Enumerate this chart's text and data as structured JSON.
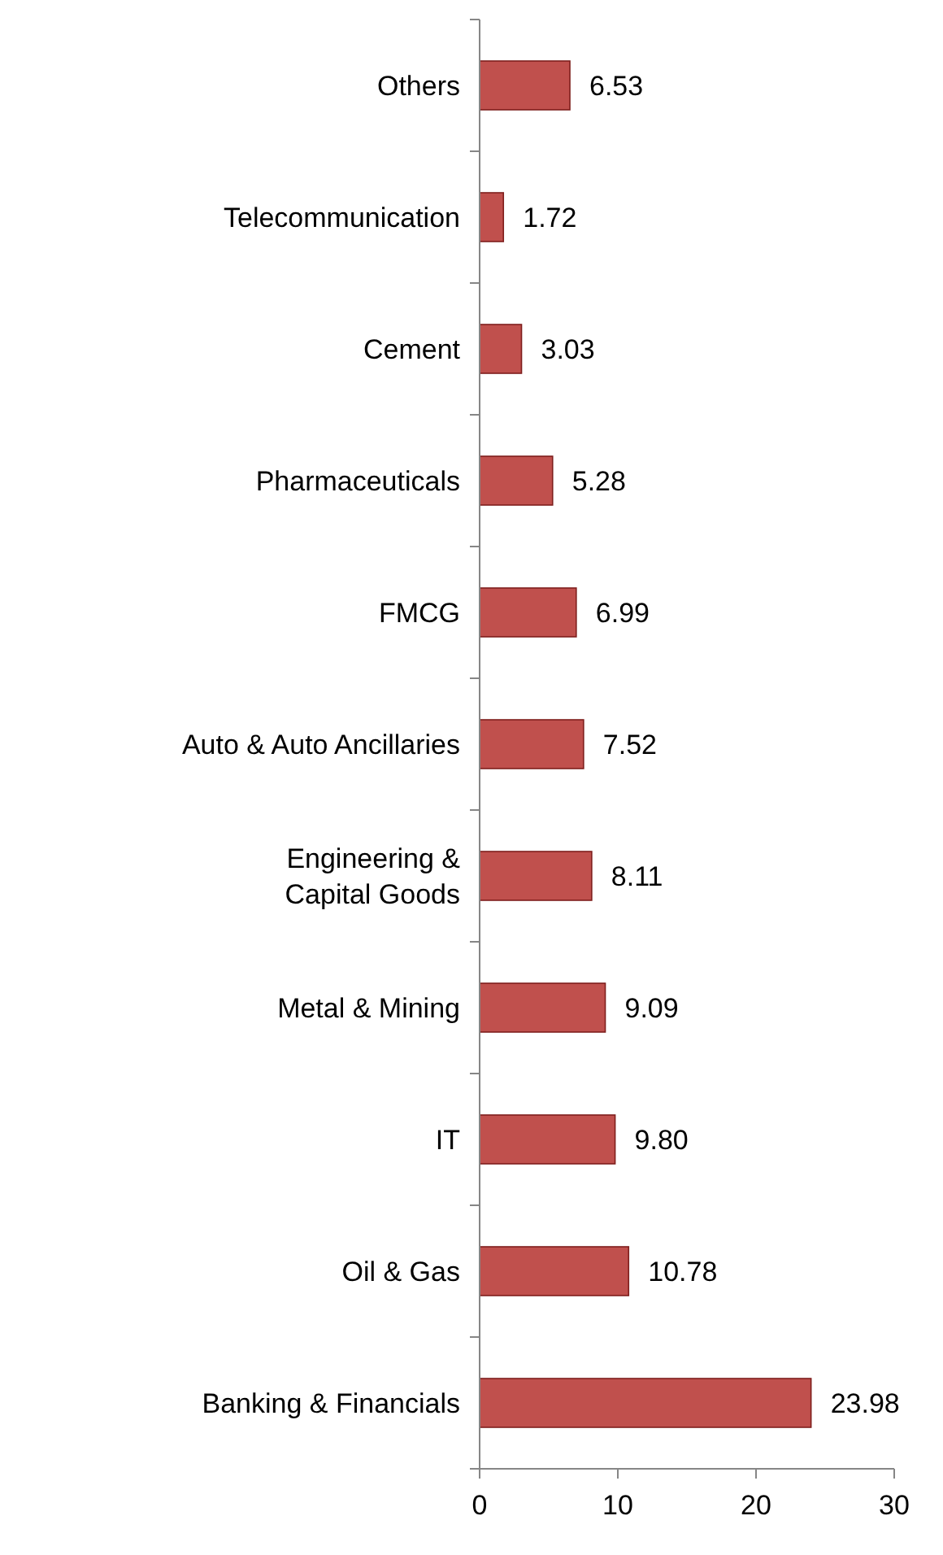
{
  "chart_data": {
    "type": "bar",
    "orientation": "horizontal",
    "categories": [
      "Others",
      "Telecommunication",
      "Cement",
      "Pharmaceuticals",
      "FMCG",
      "Auto & Auto Ancillaries",
      "Engineering & Capital Goods",
      "Metal & Mining",
      "IT",
      "Oil & Gas",
      "Banking & Financials"
    ],
    "values": [
      6.53,
      1.72,
      3.03,
      5.28,
      6.99,
      7.52,
      8.11,
      9.09,
      9.8,
      10.78,
      23.98
    ],
    "value_labels": [
      "6.53",
      "1.72",
      "3.03",
      "5.28",
      "6.99",
      "7.52",
      "8.11",
      "9.09",
      "9.80",
      "10.78",
      "23.98"
    ],
    "color": "#c0504d",
    "xlim": [
      0,
      30
    ],
    "xticks": [
      0,
      10,
      20,
      30
    ]
  }
}
